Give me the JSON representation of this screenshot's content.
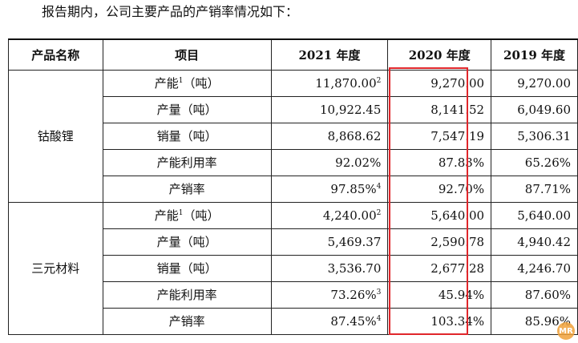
{
  "intro": "报告期内，公司主要产品的产销率情况如下：",
  "headers": [
    "产品名称",
    "项目",
    "2021 年度",
    "2020 年度",
    "2019 年度"
  ],
  "groups": [
    {
      "product": "钴酸锂",
      "rows": [
        {
          "item": "产能",
          "item_sup": "1",
          "item_suffix": "（吨）",
          "y2021": "11,870.00",
          "y2021_sup": "2",
          "y2020": "9,270.00",
          "y2019": "9,270.00"
        },
        {
          "item": "产量（吨）",
          "item_sup": "",
          "item_suffix": "",
          "y2021": "10,922.45",
          "y2021_sup": "",
          "y2020": "8,141.52",
          "y2019": "6,049.60"
        },
        {
          "item": "销量（吨）",
          "item_sup": "",
          "item_suffix": "",
          "y2021": "8,868.62",
          "y2021_sup": "",
          "y2020": "7,547.19",
          "y2019": "5,306.31"
        },
        {
          "item": "产能利用率",
          "item_sup": "",
          "item_suffix": "",
          "y2021": "92.02%",
          "y2021_sup": "",
          "y2020": "87.83%",
          "y2019": "65.26%"
        },
        {
          "item": "产销率",
          "item_sup": "",
          "item_suffix": "",
          "y2021": "97.85%",
          "y2021_sup": "4",
          "y2020": "92.70%",
          "y2019": "87.71%"
        }
      ]
    },
    {
      "product": "三元材料",
      "rows": [
        {
          "item": "产能",
          "item_sup": "1",
          "item_suffix": "（吨）",
          "y2021": "4,240.00",
          "y2021_sup": "2",
          "y2020": "5,640.00",
          "y2019": "5,640.00"
        },
        {
          "item": "产量（吨）",
          "item_sup": "",
          "item_suffix": "",
          "y2021": "5,469.37",
          "y2021_sup": "",
          "y2020": "2,590.78",
          "y2019": "4,940.42"
        },
        {
          "item": "销量（吨）",
          "item_sup": "",
          "item_suffix": "",
          "y2021": "3,536.70",
          "y2021_sup": "",
          "y2020": "2,677.28",
          "y2019": "4,246.70"
        },
        {
          "item": "产能利用率",
          "item_sup": "",
          "item_suffix": "",
          "y2021": "73.26%",
          "y2021_sup": "3",
          "y2020": "45.94%",
          "y2019": "87.60%"
        },
        {
          "item": "产销率",
          "item_sup": "",
          "item_suffix": "",
          "y2021": "87.45%",
          "y2021_sup": "4",
          "y2020": "103.34%",
          "y2019": "85.96%"
        }
      ]
    }
  ],
  "highlight_color": "#e0262b",
  "watermark": "MR"
}
